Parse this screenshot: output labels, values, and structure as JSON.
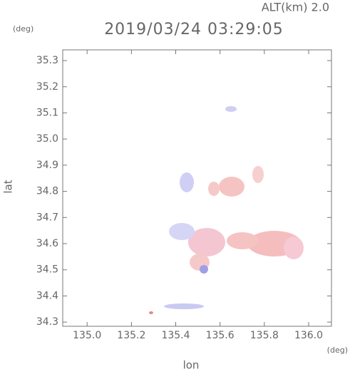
{
  "chart_data": {
    "type": "scatter",
    "title": "2019/03/24 03:29:05",
    "annotation": "ALT(km) 2.0",
    "y_unit": "(deg)",
    "x_unit": "(deg)",
    "x_label": "lon",
    "y_label": "lat",
    "xlim": [
      134.89,
      136.103
    ],
    "xticks": [
      {
        "value": 135.0,
        "label": "135.0"
      },
      135.2,
      135.4,
      135.6,
      135.8,
      {
        "value": 136.0,
        "label": "136.0"
      }
    ],
    "ylim": [
      34.284,
      35.341
    ],
    "yticks": [
      34.3,
      34.4,
      34.5,
      34.6,
      34.7,
      34.8,
      34.9,
      {
        "value": 35.0,
        "label": "35.0"
      },
      35.1,
      35.2,
      35.3
    ]
  }
}
